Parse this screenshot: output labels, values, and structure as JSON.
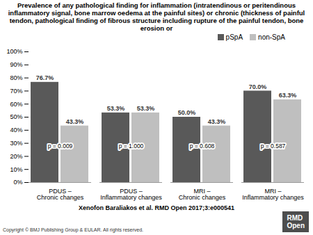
{
  "chart_data": {
    "type": "bar",
    "title": "Prevalence of any pathological finding for inflammation (intratendinous or peritendinous inflammatory signal, bone marrow oedema at the painful sites) or chronic (thickness of painful tendon, pathological finding of fibrous structure including rupture of the painful tendon, bone erosion or",
    "categories": [
      "PDUS – Chronic changes",
      "PDUS – Inflammatory changes",
      "MRI – Chronic changes",
      "MRI – Inflammatory changes"
    ],
    "series": [
      {
        "name": "pSpA",
        "color": "#595959",
        "values": [
          76.7,
          53.3,
          50.0,
          70.0
        ],
        "value_labels": [
          "76.7%",
          "53.3%",
          "50.0%",
          "70.0%"
        ]
      },
      {
        "name": "non-SpA",
        "color": "#bfbfbf",
        "values": [
          43.3,
          53.3,
          43.3,
          63.3
        ],
        "value_labels": [
          "43.3%",
          "53.3%",
          "43.3%",
          "63.3%"
        ]
      }
    ],
    "annotations": [
      "p = 0.009",
      "p = 1.000",
      "p = 0.608",
      "p = 0.587"
    ],
    "ylim": [
      0,
      100
    ],
    "yticks": [
      {
        "value": 0,
        "label": "0%"
      },
      {
        "value": 10,
        "label": "10%"
      },
      {
        "value": 20,
        "label": "20%"
      },
      {
        "value": 30,
        "label": "30%"
      },
      {
        "value": 40,
        "label": "40%"
      },
      {
        "value": 50,
        "label": "50%"
      },
      {
        "value": 60,
        "label": "60%"
      },
      {
        "value": 70,
        "label": "70%"
      },
      {
        "value": 80,
        "label": "80%"
      },
      {
        "value": 90,
        "label": "90%"
      },
      {
        "value": 100,
        "label": "100%"
      }
    ],
    "grid": false,
    "legend": "top-right",
    "data_labels": true,
    "source": "Xenofon Baraliakos et al. RMD Open 2017;3:e000541",
    "copyright": "Copyright © BMJ Publishing Group & EULAR. All rights reserved.",
    "logo": "RMD Open"
  }
}
